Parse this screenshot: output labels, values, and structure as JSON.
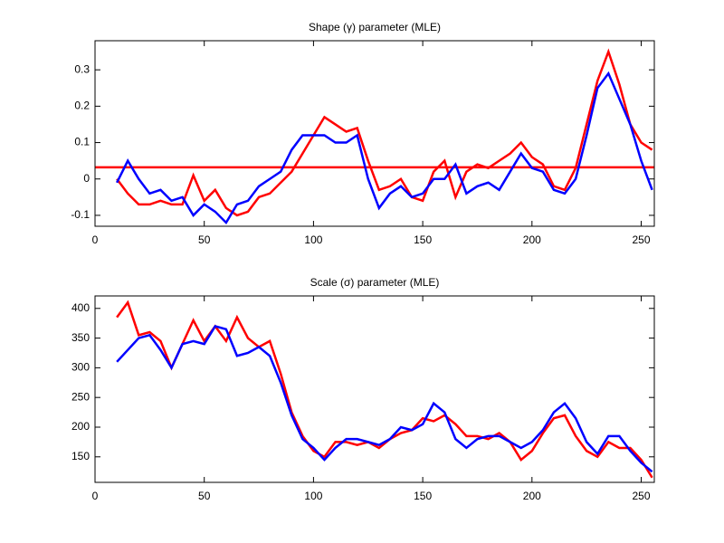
{
  "chart_data": [
    {
      "type": "line",
      "title": "Shape (γ) parameter (MLE)",
      "x": [
        10,
        15,
        20,
        25,
        30,
        35,
        40,
        45,
        50,
        55,
        60,
        65,
        70,
        75,
        80,
        85,
        90,
        95,
        100,
        105,
        110,
        115,
        120,
        125,
        130,
        135,
        140,
        145,
        150,
        155,
        160,
        165,
        170,
        175,
        180,
        185,
        190,
        195,
        200,
        205,
        210,
        215,
        220,
        225,
        230,
        235,
        240,
        245,
        250,
        255
      ],
      "series": [
        {
          "color": "#ff0000",
          "values": [
            0.0,
            -0.04,
            -0.07,
            -0.07,
            -0.06,
            -0.07,
            -0.07,
            0.01,
            -0.06,
            -0.03,
            -0.08,
            -0.1,
            -0.09,
            -0.05,
            -0.04,
            -0.01,
            0.02,
            0.07,
            0.12,
            0.17,
            0.15,
            0.13,
            0.14,
            0.05,
            -0.03,
            -0.02,
            0.0,
            -0.05,
            -0.06,
            0.02,
            0.05,
            -0.05,
            0.02,
            0.04,
            0.03,
            0.05,
            0.07,
            0.1,
            0.06,
            0.04,
            -0.02,
            -0.03,
            0.03,
            0.15,
            0.27,
            0.35,
            0.26,
            0.15,
            0.1,
            0.08
          ]
        },
        {
          "color": "#0000ff",
          "values": [
            -0.01,
            0.05,
            0.0,
            -0.04,
            -0.03,
            -0.06,
            -0.05,
            -0.1,
            -0.07,
            -0.09,
            -0.12,
            -0.07,
            -0.06,
            -0.02,
            0.0,
            0.02,
            0.08,
            0.12,
            0.12,
            0.12,
            0.1,
            0.1,
            0.12,
            0.0,
            -0.08,
            -0.04,
            -0.02,
            -0.05,
            -0.04,
            0.0,
            0.0,
            0.04,
            -0.04,
            -0.02,
            -0.01,
            -0.03,
            0.02,
            0.07,
            0.03,
            0.02,
            -0.03,
            -0.04,
            0.0,
            0.12,
            0.25,
            0.29,
            0.22,
            0.15,
            0.05,
            -0.03
          ]
        }
      ],
      "hline": {
        "value": 0.032,
        "color": "#ff0000"
      },
      "xlim": [
        0,
        256
      ],
      "xticks": [
        0,
        50,
        100,
        150,
        200,
        250
      ],
      "ylim": [
        -0.13,
        0.38
      ],
      "yticks": [
        -0.1,
        0,
        0.1,
        0.2,
        0.3
      ]
    },
    {
      "type": "line",
      "title": "Scale (σ) parameter (MLE)",
      "x": [
        10,
        15,
        20,
        25,
        30,
        35,
        40,
        45,
        50,
        55,
        60,
        65,
        70,
        75,
        80,
        85,
        90,
        95,
        100,
        105,
        110,
        115,
        120,
        125,
        130,
        135,
        140,
        145,
        150,
        155,
        160,
        165,
        170,
        175,
        180,
        185,
        190,
        195,
        200,
        205,
        210,
        215,
        220,
        225,
        230,
        235,
        240,
        245,
        250,
        255
      ],
      "series": [
        {
          "color": "#ff0000",
          "values": [
            385,
            410,
            355,
            360,
            345,
            300,
            340,
            380,
            345,
            370,
            345,
            385,
            350,
            335,
            345,
            290,
            225,
            185,
            160,
            150,
            175,
            175,
            170,
            175,
            165,
            180,
            190,
            195,
            215,
            210,
            220,
            205,
            185,
            185,
            180,
            190,
            175,
            145,
            160,
            190,
            215,
            220,
            185,
            160,
            150,
            175,
            165,
            165,
            145,
            115
          ]
        },
        {
          "color": "#0000ff",
          "values": [
            310,
            330,
            350,
            355,
            330,
            300,
            340,
            345,
            340,
            370,
            365,
            320,
            325,
            335,
            320,
            275,
            220,
            180,
            165,
            145,
            165,
            180,
            180,
            175,
            170,
            180,
            200,
            195,
            205,
            240,
            225,
            180,
            165,
            180,
            185,
            185,
            175,
            165,
            175,
            195,
            225,
            240,
            215,
            175,
            155,
            185,
            185,
            160,
            140,
            125
          ]
        }
      ],
      "xlim": [
        0,
        256
      ],
      "xticks": [
        0,
        50,
        100,
        150,
        200,
        250
      ],
      "ylim": [
        107,
        421
      ],
      "yticks": [
        150,
        200,
        250,
        300,
        350,
        400
      ]
    }
  ]
}
